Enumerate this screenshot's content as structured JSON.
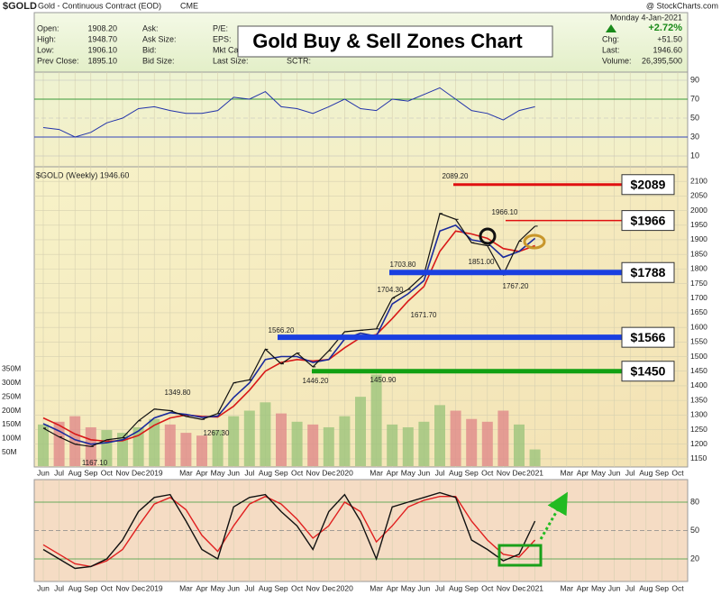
{
  "chart_data": {
    "type": "stock",
    "symbol": "$GOLD",
    "description": "Gold - Continuous Contract (EOD)",
    "exchange": "CME",
    "source": "@ StockCharts.com",
    "date": "Monday 4-Jan-2021",
    "change_pct": "+2.72%",
    "info_left": [
      [
        "Open:",
        "1908.20"
      ],
      [
        "High:",
        "1948.70"
      ],
      [
        "Low:",
        "1906.10"
      ],
      [
        "Prev Close:",
        "1895.10"
      ]
    ],
    "info_mid": [
      "Ask:",
      "Ask Size:",
      "Bid:",
      "Bid Size:"
    ],
    "info_mid2": [
      "P/E:",
      "EPS:",
      "Mkt Cap",
      "Last Size:"
    ],
    "sctr": "SCTR:",
    "info_right": [
      [
        "Chg:",
        "+51.50"
      ],
      [
        "Last:",
        "1946.60"
      ],
      [
        "Volume:",
        "26,395,500"
      ]
    ],
    "title": "Gold Buy & Sell Zones Chart",
    "price_legend": "$GOLD (Weekly) 1946.60",
    "categories": [
      "Jun",
      "Jul",
      "Aug",
      "Sep",
      "Oct",
      "Nov",
      "Dec",
      "2019",
      null,
      "Mar",
      "Apr",
      "May",
      "Jun",
      "Jul",
      "Aug",
      "Sep",
      "Oct",
      "Nov",
      "Dec",
      "2020",
      null,
      "Mar",
      "Apr",
      "May",
      "Jun",
      "Jul",
      "Aug",
      "Sep",
      "Oct",
      "Nov",
      "Dec",
      "2021",
      null,
      "Mar",
      "Apr",
      "May",
      "Jun",
      "Jul",
      "Aug",
      "Sep",
      "Oct"
    ],
    "series": [
      {
        "name": "Close",
        "color": "#111111",
        "values": [
          1255,
          1225,
          1200,
          1192,
          1215,
          1222,
          1280,
          1320,
          1315,
          1295,
          1285,
          1305,
          1410,
          1420,
          1525,
          1475,
          1512,
          1465,
          1520,
          1585,
          1590,
          1595,
          1700,
          1730,
          1780,
          1990,
          1970,
          1890,
          1880,
          1780,
          1895,
          1946.6,
          null,
          null,
          null,
          null,
          null,
          null,
          null,
          null,
          null
        ]
      },
      {
        "name": "Fast MA",
        "color": "#1a2a9c",
        "values": [
          1270,
          1245,
          1215,
          1200,
          1205,
          1215,
          1245,
          1290,
          1308,
          1302,
          1292,
          1296,
          1360,
          1410,
          1490,
          1500,
          1500,
          1480,
          1490,
          1560,
          1580,
          1570,
          1680,
          1715,
          1760,
          1930,
          1950,
          1900,
          1890,
          1840,
          1860,
          1905,
          null,
          null,
          null,
          null,
          null,
          null,
          null,
          null,
          null
        ]
      },
      {
        "name": "Slow MA",
        "color": "#d81818",
        "values": [
          1290,
          1265,
          1235,
          1215,
          1210,
          1212,
          1230,
          1265,
          1290,
          1300,
          1295,
          1293,
          1330,
          1385,
          1450,
          1480,
          1490,
          1485,
          1490,
          1530,
          1565,
          1575,
          1630,
          1690,
          1740,
          1860,
          1930,
          1920,
          1905,
          1870,
          1860,
          1880,
          null,
          null,
          null,
          null,
          null,
          null,
          null,
          null,
          null
        ]
      }
    ],
    "ylim": [
      1125,
      2150
    ],
    "yticks": [
      1150,
      1200,
      1250,
      1300,
      1350,
      1400,
      1450,
      1500,
      1550,
      1600,
      1650,
      1700,
      1750,
      1800,
      1850,
      1900,
      1950,
      2000,
      2050,
      2100
    ],
    "grid": true,
    "volume": {
      "up_color": "#9cc47c",
      "down_color": "#e08a8a",
      "ylim": [
        0,
        1080
      ],
      "values": [
        150,
        160,
        180,
        140,
        130,
        120,
        140,
        170,
        150,
        120,
        110,
        130,
        180,
        200,
        230,
        190,
        160,
        150,
        140,
        180,
        250,
        330,
        150,
        140,
        160,
        220,
        200,
        170,
        160,
        200,
        150,
        60,
        null,
        null,
        null,
        null,
        null,
        null,
        null,
        null,
        null
      ],
      "ticks": [
        {
          "value": 50,
          "label": "50M"
        },
        {
          "value": 100,
          "label": "100M"
        },
        {
          "value": 150,
          "label": "150M"
        },
        {
          "value": 200,
          "label": "200M"
        },
        {
          "value": 250,
          "label": "250M"
        },
        {
          "value": 300,
          "label": "300M"
        },
        {
          "value": 350,
          "label": "350M"
        }
      ]
    },
    "rsi": {
      "color": "#2233aa",
      "ylim": [
        0,
        100
      ],
      "yticks": [
        10,
        30,
        50,
        70,
        90
      ],
      "values": [
        40,
        38,
        30,
        35,
        45,
        50,
        60,
        62,
        58,
        55,
        55,
        58,
        72,
        70,
        78,
        62,
        60,
        55,
        62,
        70,
        60,
        58,
        70,
        68,
        75,
        82,
        70,
        58,
        55,
        48,
        58,
        62,
        null,
        null,
        null,
        null,
        null,
        null,
        null,
        null,
        null
      ]
    },
    "stoch": {
      "ylim": [
        0,
        100
      ],
      "yticks": [
        20,
        50,
        80
      ],
      "series": [
        {
          "name": "%K",
          "color": "#111111",
          "values": [
            30,
            20,
            10,
            12,
            20,
            40,
            70,
            85,
            88,
            60,
            30,
            20,
            75,
            85,
            88,
            70,
            55,
            30,
            70,
            88,
            60,
            20,
            75,
            80,
            85,
            90,
            85,
            40,
            30,
            18,
            25,
            60,
            null,
            null,
            null,
            null,
            null,
            null,
            null,
            null,
            null
          ]
        },
        {
          "name": "%D",
          "color": "#e02020",
          "values": [
            35,
            25,
            15,
            12,
            18,
            30,
            55,
            78,
            85,
            72,
            45,
            28,
            55,
            78,
            86,
            78,
            62,
            42,
            55,
            80,
            70,
            38,
            55,
            75,
            82,
            86,
            86,
            60,
            40,
            25,
            22,
            40,
            null,
            null,
            null,
            null,
            null,
            null,
            null,
            null,
            null
          ]
        }
      ]
    },
    "zones": [
      {
        "value": 2089,
        "label": "$2089",
        "color": "#e01010"
      },
      {
        "value": 1966,
        "label": "$1966",
        "color": "#e01010"
      },
      {
        "value": 1788,
        "label": "$1788",
        "color": "#1a3fe0"
      },
      {
        "value": 1566,
        "label": "$1566",
        "color": "#1a3fe0"
      },
      {
        "value": 1450,
        "label": "$1450",
        "color": "#12a012"
      }
    ],
    "annotations": [
      {
        "value": 2089.2,
        "label": "2089.20"
      },
      {
        "value": 1966.1,
        "label": "1966.10"
      },
      {
        "value": 1851,
        "label": "1851.00"
      },
      {
        "value": 1767.2,
        "label": "1767.20"
      },
      {
        "value": 1703.8,
        "label": "1703.80"
      },
      {
        "value": 1704.3,
        "label": "1704.30"
      },
      {
        "value": 1671.7,
        "label": "1671.70"
      },
      {
        "value": 1566.2,
        "label": "1566.20"
      },
      {
        "value": 1446.2,
        "label": "1446.20"
      },
      {
        "value": 1450.9,
        "label": "1450.90"
      },
      {
        "value": 1349.8,
        "label": "1349.80"
      },
      {
        "value": 1267.3,
        "label": "1267.30"
      },
      {
        "value": 1167.1,
        "label": "1167.10"
      }
    ]
  }
}
